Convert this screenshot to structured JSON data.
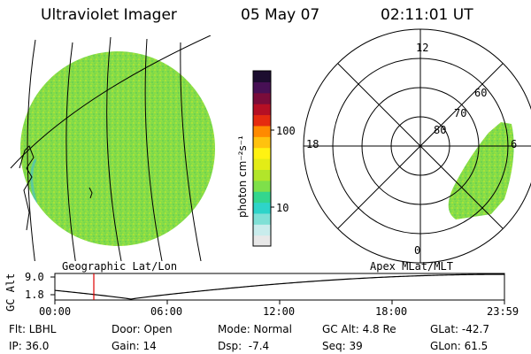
{
  "header": {
    "instrument": "Ultraviolet Imager",
    "date": "05 May 07",
    "time": "02:11:01 UT"
  },
  "left_panel": {
    "label": "Geographic Lat/Lon"
  },
  "colorbar": {
    "unit_label": "photon cm⁻²s⁻¹",
    "tick_high": "100",
    "tick_low": "10",
    "colors": [
      "#e8e8e8",
      "#c9ecec",
      "#7fe0d6",
      "#2ed4c9",
      "#33d68e",
      "#7ee04a",
      "#b2e52a",
      "#e3ec16",
      "#fff212",
      "#ffc20e",
      "#ff8a00",
      "#e52b0f",
      "#b50f24",
      "#7a0c3a",
      "#471055",
      "#1c0d2f"
    ]
  },
  "polar_panel": {
    "label": "Apex MLat/MLT",
    "mlt_labels": {
      "top": "12",
      "bottom": "0",
      "left": "18",
      "right": "6"
    },
    "lat_labels": [
      "60",
      "70",
      "80"
    ]
  },
  "altitude_strip": {
    "axis_label": "GC Alt",
    "ymax_label": "9.0",
    "ymin_label": "1.8",
    "time_ticks": [
      "00:00",
      "06:00",
      "12:00",
      "18:00",
      "23:59"
    ],
    "current_marker_color": "#e00000"
  },
  "info": {
    "filter": "Flt: LBHL",
    "ip": "IP: 36.0",
    "door": "Door: Open",
    "gain": "Gain: 14",
    "mode": "Mode: Normal",
    "dsp": "Dsp:  -7.4",
    "gc_alt": "GC Alt: 4.8 Re",
    "seq": "Seq: 39",
    "glat": "GLat: -42.7",
    "glon": "GLon: 61.5"
  }
}
